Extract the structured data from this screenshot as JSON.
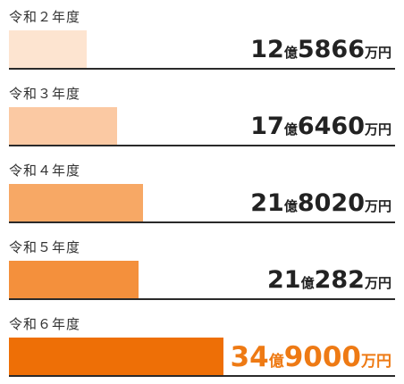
{
  "chart_data": {
    "type": "bar",
    "orientation": "horizontal",
    "unit": "万円",
    "categories": [
      "令和２年度",
      "令和３年度",
      "令和４年度",
      "令和５年度",
      "令和６年度"
    ],
    "values": [
      125866,
      176460,
      218020,
      210282,
      349000
    ],
    "labels": [
      {
        "oku": "12",
        "oku_unit": "億",
        "man": "5866",
        "man_unit": "万円"
      },
      {
        "oku": "17",
        "oku_unit": "億",
        "man": "6460",
        "man_unit": "万円"
      },
      {
        "oku": "21",
        "oku_unit": "億",
        "man": "8020",
        "man_unit": "万円"
      },
      {
        "oku": "21",
        "oku_unit": "億",
        "man": "282",
        "man_unit": "万円"
      },
      {
        "oku": "34",
        "oku_unit": "億",
        "man": "9000",
        "man_unit": "万円"
      }
    ],
    "bar_colors": [
      "#fde4d0",
      "#fbc9a3",
      "#f7a865",
      "#f4903c",
      "#ee6f06"
    ],
    "highlight_color": "#ee7a14",
    "highlight_index": 4,
    "title": "",
    "xlabel": "",
    "ylabel": "",
    "grid": false
  }
}
